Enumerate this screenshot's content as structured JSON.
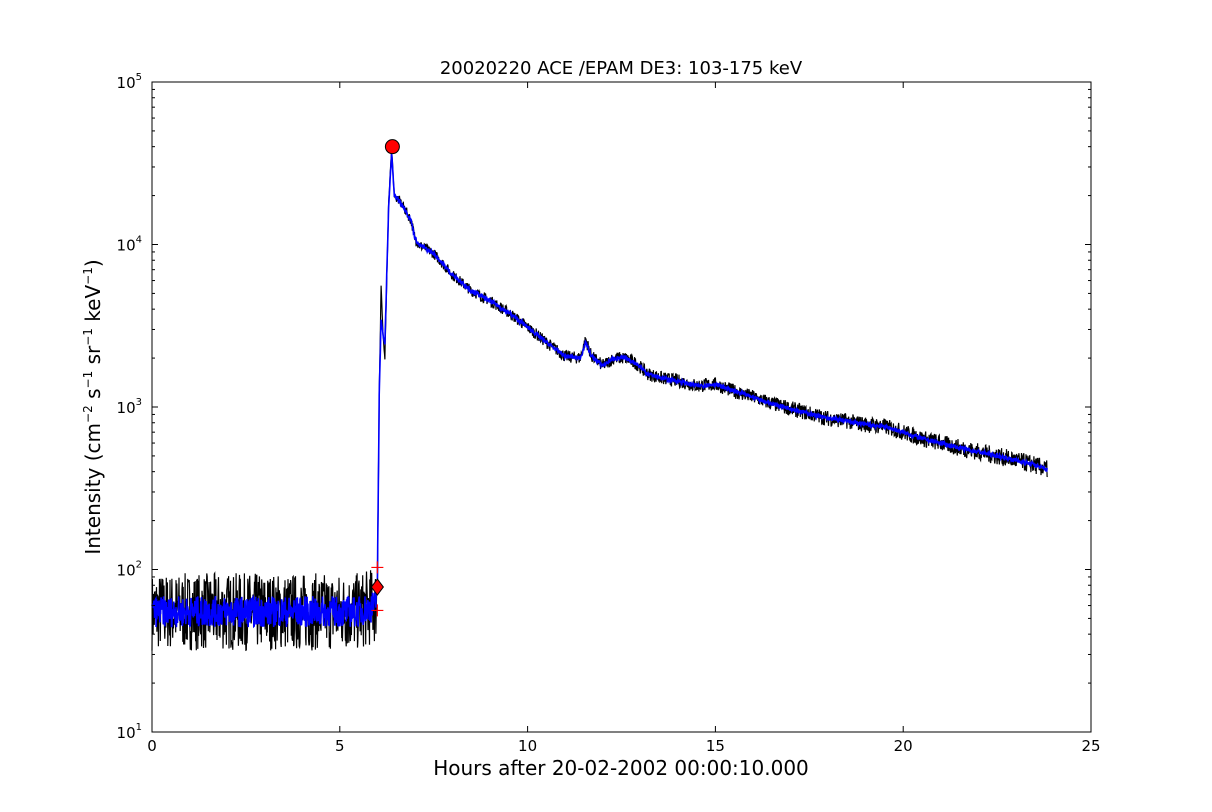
{
  "chart_data": {
    "type": "line",
    "title": "20020220 ACE /EPAM DE3: 103-175 keV",
    "xlabel": "Hours after 20-02-2002 00:00:10.000",
    "ylabel": {
      "main": "Intensity (cm",
      "sup1": "−2",
      "mid1": " s",
      "sup2": "−1",
      "mid2": " sr",
      "sup3": "−1",
      "mid3": " keV",
      "sup4": "−1",
      "end": ")"
    },
    "xlim": [
      0,
      25
    ],
    "ylim": [
      10,
      100000
    ],
    "yscale": "log",
    "xticks": [
      0,
      5,
      10,
      15,
      20,
      25
    ],
    "xtick_labels": [
      "0",
      "5",
      "10",
      "15",
      "20",
      "25"
    ],
    "yticks": [
      10,
      100,
      1000,
      10000,
      100000
    ],
    "ytick_labels": [
      {
        "base": "10",
        "exp": "1"
      },
      {
        "base": "10",
        "exp": "2"
      },
      {
        "base": "10",
        "exp": "3"
      },
      {
        "base": "10",
        "exp": "4"
      },
      {
        "base": "10",
        "exp": "5"
      }
    ],
    "grid": false,
    "series": [
      {
        "style": "raw",
        "color": "#000000",
        "x": [
          0,
          0.5,
          1,
          1.5,
          2,
          2.5,
          3,
          3.5,
          4,
          4.5,
          5,
          5.5,
          5.95,
          6.0,
          6.05,
          6.1,
          6.15,
          6.2,
          6.3,
          6.38,
          6.45,
          6.55,
          6.7,
          6.9,
          7.0,
          7.1,
          7.5,
          8.0,
          8.5,
          9.0,
          9.5,
          10.0,
          10.5,
          11.0,
          11.4,
          11.55,
          11.7,
          12.0,
          12.3,
          12.6,
          12.9,
          13.2,
          13.6,
          14.0,
          14.5,
          15.0,
          15.5,
          16.0,
          16.5,
          17.0,
          17.5,
          18.0,
          18.5,
          19.0,
          19.5,
          20.0,
          20.5,
          21.0,
          21.5,
          22.0,
          22.5,
          23.0,
          23.5,
          23.85
        ],
        "y": [
          55,
          55,
          55,
          55,
          55,
          55,
          55,
          55,
          55,
          55,
          55,
          55,
          60,
          80,
          1200,
          5500,
          2800,
          2000,
          18000,
          39000,
          20000,
          19000,
          17000,
          14000,
          11000,
          10000,
          8800,
          6500,
          5200,
          4500,
          3800,
          3100,
          2500,
          2050,
          2000,
          2600,
          2050,
          1800,
          2000,
          2000,
          1850,
          1600,
          1500,
          1450,
          1350,
          1380,
          1250,
          1150,
          1050,
          980,
          910,
          850,
          820,
          780,
          760,
          700,
          640,
          600,
          560,
          530,
          500,
          470,
          440,
          410
        ]
      },
      {
        "style": "smoothed",
        "color": "#0000ff",
        "x": [
          0,
          0.5,
          1,
          1.5,
          2,
          2.5,
          3,
          3.5,
          4,
          4.5,
          5,
          5.5,
          5.95,
          6.0,
          6.05,
          6.1,
          6.15,
          6.2,
          6.3,
          6.38,
          6.45,
          6.55,
          6.7,
          6.9,
          7.0,
          7.1,
          7.5,
          8.0,
          8.5,
          9.0,
          9.5,
          10.0,
          10.5,
          11.0,
          11.4,
          11.55,
          11.7,
          12.0,
          12.3,
          12.6,
          12.9,
          13.2,
          13.6,
          14.0,
          14.5,
          15.0,
          15.5,
          16.0,
          16.5,
          17.0,
          17.5,
          18.0,
          18.5,
          19.0,
          19.5,
          20.0,
          20.5,
          21.0,
          21.5,
          22.0,
          22.5,
          23.0,
          23.5,
          23.85
        ],
        "y": [
          55,
          55,
          55,
          55,
          55,
          55,
          55,
          55,
          55,
          55,
          55,
          55,
          60,
          80,
          1200,
          3500,
          2800,
          2400,
          17000,
          37000,
          20000,
          19000,
          17000,
          14000,
          11000,
          10000,
          8800,
          6500,
          5200,
          4500,
          3800,
          3100,
          2500,
          2050,
          2000,
          2500,
          2050,
          1800,
          2000,
          2000,
          1850,
          1600,
          1500,
          1450,
          1350,
          1380,
          1250,
          1150,
          1050,
          980,
          910,
          850,
          820,
          780,
          760,
          700,
          640,
          600,
          560,
          530,
          500,
          470,
          440,
          410
        ]
      }
    ],
    "markers": [
      {
        "name": "peak",
        "shape": "circle",
        "color": "#ff0000",
        "x": 6.4,
        "y": 40000
      },
      {
        "name": "onset",
        "shape": "diamond",
        "color": "#ff0000",
        "x": 6.0,
        "y": 78
      },
      {
        "name": "onset-upper",
        "shape": "plus",
        "color": "#ff0000",
        "x": 6.0,
        "y": 103
      },
      {
        "name": "onset-lower",
        "shape": "plus",
        "color": "#ff0000",
        "x": 6.0,
        "y": 56
      }
    ]
  }
}
